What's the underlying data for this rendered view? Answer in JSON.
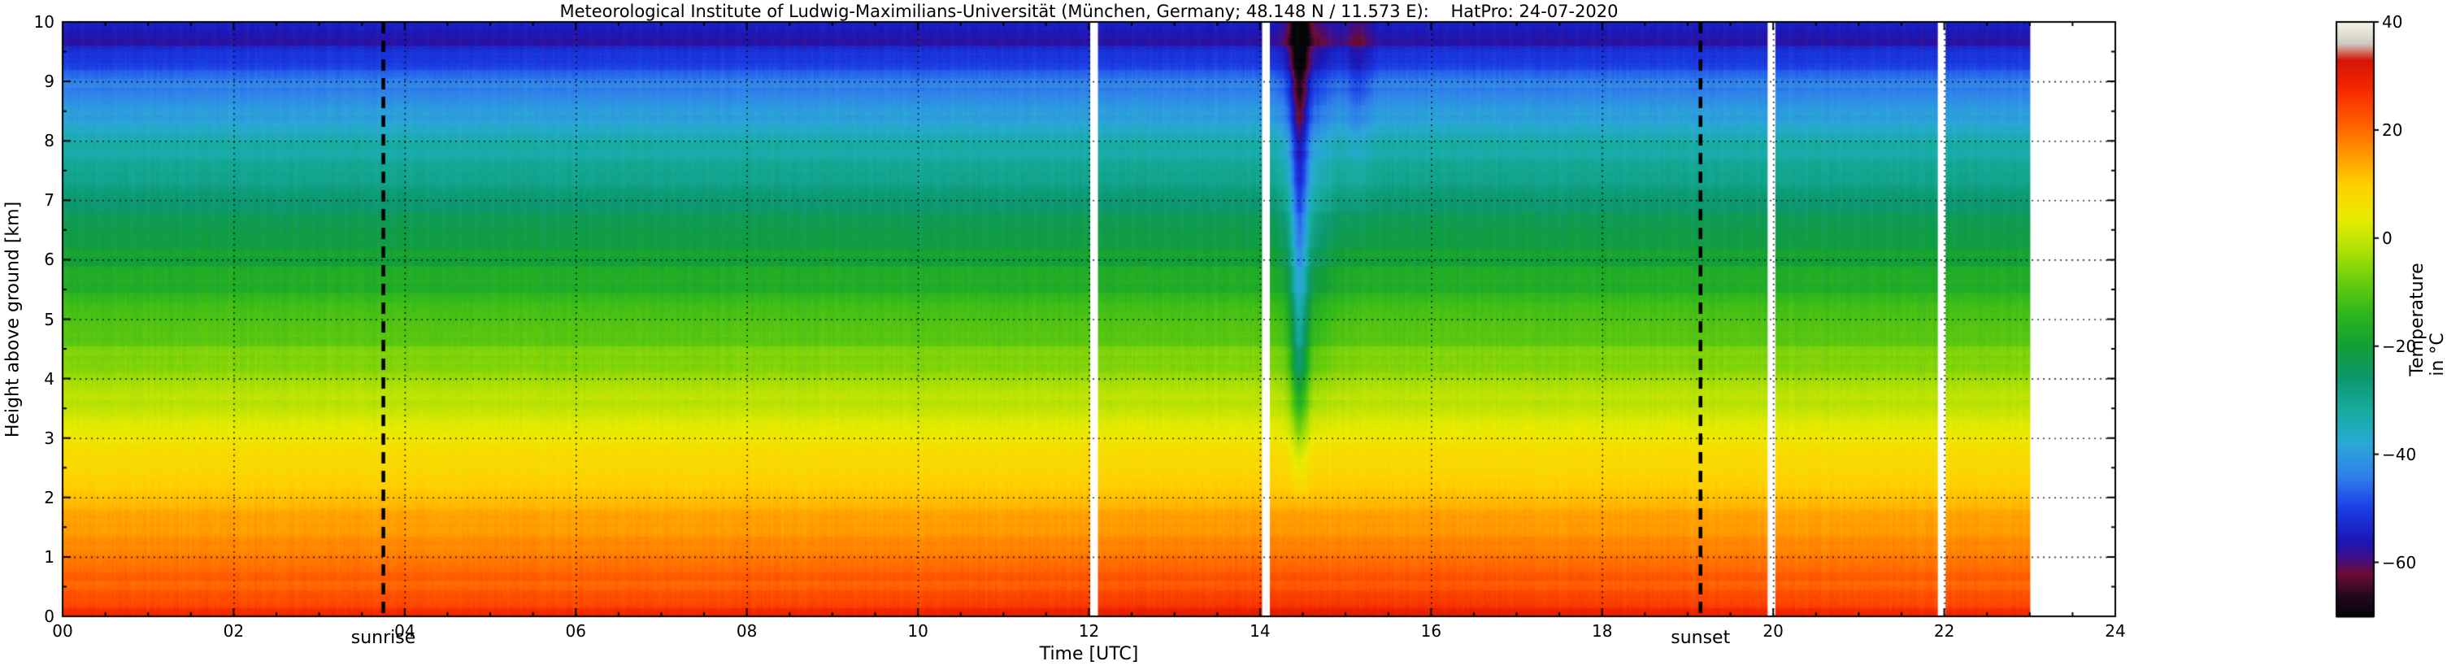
{
  "chart_data": {
    "type": "heatmap",
    "title": "Meteorological Institute of Ludwig-Maximilians-Universität (München, Germany; 48.148 N / 11.573 E):    HatPro: 24-07-2020",
    "xlabel": "Time [UTC]",
    "ylabel": "Height above ground [km]",
    "colorbar_label": "Temperature in  °C",
    "x_range": [
      0,
      24
    ],
    "y_range": [
      0,
      10
    ],
    "color_range": [
      -70,
      40
    ],
    "x_ticks": {
      "values": [
        0,
        2,
        4,
        6,
        8,
        10,
        12,
        14,
        16,
        18,
        20,
        22,
        24
      ],
      "labels": [
        "00",
        "02",
        "04",
        "06",
        "08",
        "10",
        "12",
        "14",
        "16",
        "18",
        "20",
        "22",
        "24"
      ]
    },
    "y_ticks": {
      "values": [
        0,
        1,
        2,
        3,
        4,
        5,
        6,
        7,
        8,
        9,
        10
      ],
      "labels": [
        "0",
        "1",
        "2",
        "3",
        "4",
        "5",
        "6",
        "7",
        "8",
        "9",
        "10"
      ]
    },
    "colorbar_ticks": {
      "values": [
        40,
        20,
        0,
        -20,
        -40,
        -60
      ],
      "labels": [
        "40",
        "20",
        "0",
        "−20",
        "−40",
        "−60"
      ]
    },
    "grid": {
      "x_step": 2,
      "y_step": 1,
      "style": "dashed",
      "on": true
    },
    "sun": {
      "sunrise": {
        "label": "sunrise",
        "time_utc": 3.75
      },
      "sunset": {
        "label": "sunset",
        "time_utc": 19.15
      }
    },
    "data_start": 0.0,
    "data_end": 23.0,
    "gaps": [
      {
        "time": 12.06,
        "width": 0.09
      },
      {
        "time": 14.07,
        "width": 0.09
      },
      {
        "time": 19.98,
        "width": 0.09
      },
      {
        "time": 21.97,
        "width": 0.09
      }
    ],
    "temperature_profile": [
      [
        0,
        29
      ],
      [
        0.2,
        25.5
      ],
      [
        0.5,
        22.5
      ],
      [
        1,
        18.5
      ],
      [
        1.5,
        15
      ],
      [
        2,
        11.5
      ],
      [
        2.5,
        8
      ],
      [
        3,
        4.5
      ],
      [
        3.5,
        0.5
      ],
      [
        4,
        -3.5
      ],
      [
        4.5,
        -7.5
      ],
      [
        5,
        -11.5
      ],
      [
        5.5,
        -15.5
      ],
      [
        6,
        -19
      ],
      [
        6.5,
        -22.5
      ],
      [
        7,
        -26
      ],
      [
        7.5,
        -30
      ],
      [
        8,
        -34
      ],
      [
        8.5,
        -39.5
      ],
      [
        9,
        -45.5
      ],
      [
        9.3,
        -50
      ],
      [
        9.6,
        -55
      ],
      [
        9.8,
        -55
      ],
      [
        10,
        -53
      ]
    ],
    "diurnal_surface": {
      "amplitude": 3,
      "peak_time": 14.5,
      "sigma": 5,
      "base_offset": -1,
      "height_scale": 0.8
    },
    "anomalies": [
      {
        "time": 14.45,
        "time_sigma": 0.1,
        "h_min": 1.9,
        "h_full": 4.2,
        "delta": -18
      },
      {
        "time": 14.55,
        "time_sigma": 0.3,
        "h_min": 2.5,
        "h_full": 6.5,
        "delta": -6
      },
      {
        "time": 15.15,
        "time_sigma": 0.15,
        "h_min": 6.0,
        "h_full": 9.0,
        "delta": -5
      }
    ],
    "colormap": [
      [
        -70,
        5,
        5,
        8
      ],
      [
        -66,
        40,
        8,
        30
      ],
      [
        -62,
        108,
        12,
        55
      ],
      [
        -59,
        62,
        14,
        140
      ],
      [
        -56,
        28,
        22,
        180
      ],
      [
        -50,
        25,
        62,
        230
      ],
      [
        -44,
        48,
        128,
        235
      ],
      [
        -38,
        42,
        168,
        215
      ],
      [
        -32,
        22,
        172,
        160
      ],
      [
        -26,
        12,
        152,
        112
      ],
      [
        -20,
        18,
        158,
        55
      ],
      [
        -14,
        45,
        182,
        28
      ],
      [
        -8,
        105,
        205,
        12
      ],
      [
        -2,
        178,
        225,
        5
      ],
      [
        4,
        235,
        235,
        0
      ],
      [
        10,
        255,
        208,
        0
      ],
      [
        16,
        255,
        148,
        0
      ],
      [
        22,
        255,
        88,
        0
      ],
      [
        28,
        244,
        38,
        0
      ],
      [
        33,
        212,
        22,
        6
      ],
      [
        36,
        205,
        202,
        192
      ],
      [
        38,
        228,
        225,
        212
      ],
      [
        40,
        246,
        242,
        228
      ]
    ]
  }
}
